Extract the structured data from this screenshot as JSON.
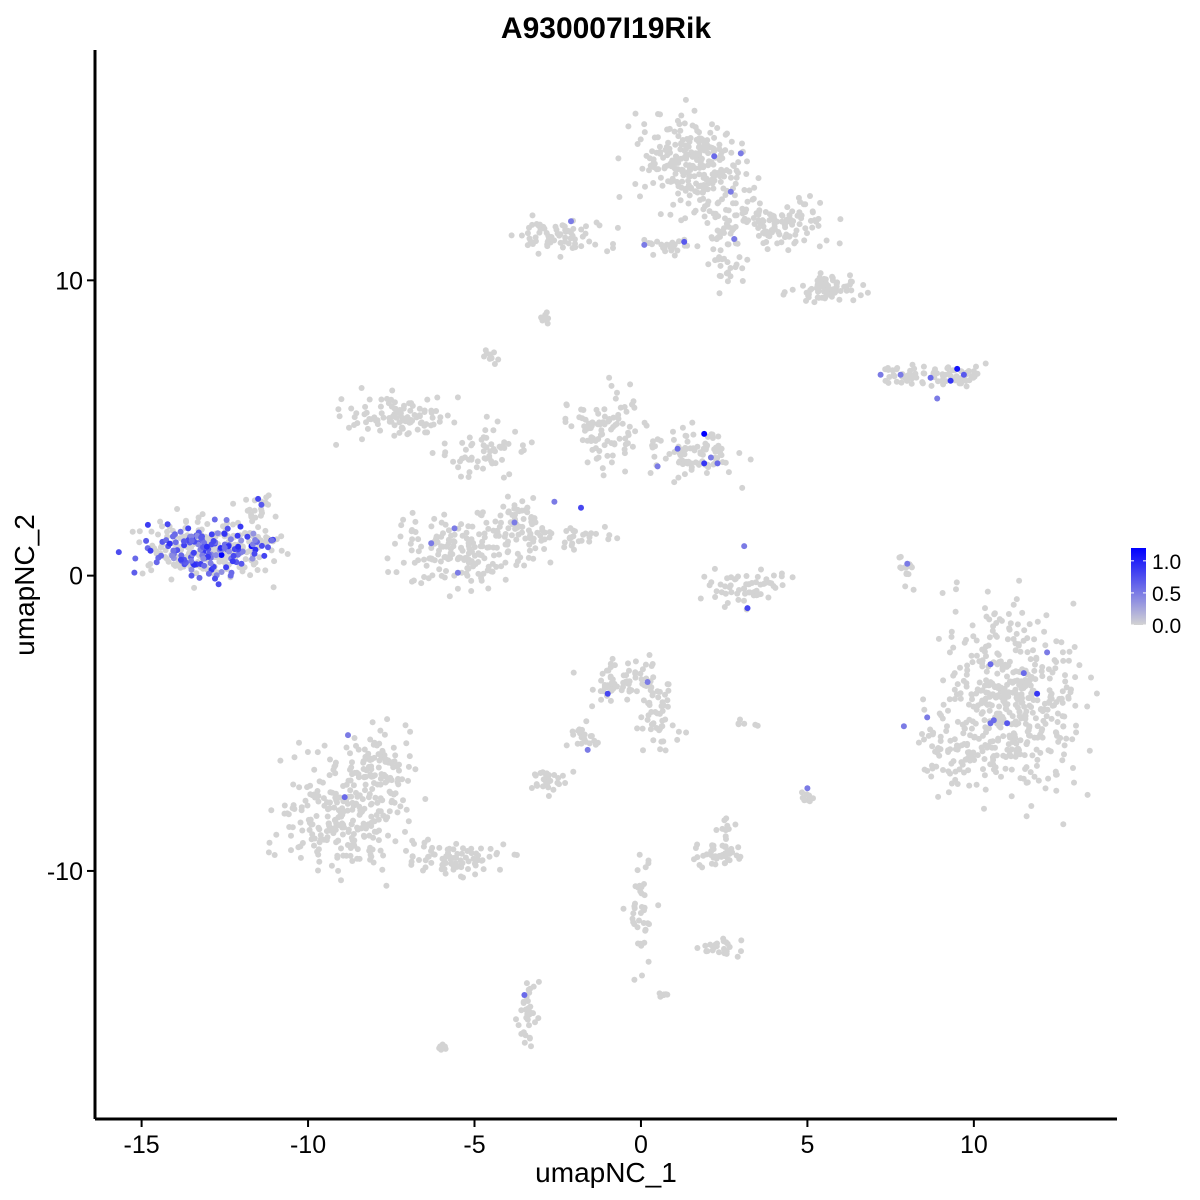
{
  "chart_data": {
    "type": "scatter",
    "title": "A930007I19Rik",
    "xlabel": "umapNC_1",
    "ylabel": "umapNC_2",
    "xlim": [
      -16.4,
      14.3
    ],
    "ylim": [
      -18.4,
      17.8
    ],
    "x_ticks": [
      -15,
      -10,
      -5,
      0,
      5,
      10
    ],
    "x_tick_labels": [
      "-15",
      "-10",
      "-5",
      "0",
      "5",
      "10"
    ],
    "y_ticks": [
      -10,
      0,
      10
    ],
    "y_tick_labels": [
      "-10",
      "0",
      "10"
    ],
    "grid": false,
    "legend_position": "right",
    "colors": {
      "low": "#d3d3d3",
      "high": "#0000ff",
      "point_background": "#d3d3d3"
    },
    "color_scale": {
      "min": 0.0,
      "max": 1.2,
      "breaks": [
        0.0,
        0.5,
        1.0
      ],
      "break_labels": [
        "0.0",
        "0.5",
        "1.0"
      ]
    },
    "clusters": [
      {
        "cx": -13.0,
        "cy": 0.9,
        "rx": 1.9,
        "ry": 0.9,
        "n": 220
      },
      {
        "cx": -11.5,
        "cy": 2.3,
        "rx": 0.35,
        "ry": 0.5,
        "n": 20
      },
      {
        "cx": -11.2,
        "cy": 1.2,
        "rx": 0.5,
        "ry": 0.25,
        "n": 10
      },
      {
        "cx": 1.5,
        "cy": 14.0,
        "rx": 1.5,
        "ry": 1.4,
        "n": 260
      },
      {
        "cx": 3.9,
        "cy": 11.9,
        "rx": 1.9,
        "ry": 0.7,
        "n": 140
      },
      {
        "cx": 5.6,
        "cy": 9.7,
        "rx": 0.9,
        "ry": 0.45,
        "n": 70
      },
      {
        "cx": -2.4,
        "cy": 11.5,
        "rx": 1.3,
        "ry": 0.45,
        "n": 70
      },
      {
        "cx": 0.8,
        "cy": 11.2,
        "rx": 0.8,
        "ry": 0.25,
        "n": 25
      },
      {
        "cx": 2.6,
        "cy": 10.8,
        "rx": 0.5,
        "ry": 0.8,
        "n": 30
      },
      {
        "cx": -2.8,
        "cy": 8.7,
        "rx": 0.25,
        "ry": 0.2,
        "n": 8
      },
      {
        "cx": -4.5,
        "cy": 7.4,
        "rx": 0.25,
        "ry": 0.3,
        "n": 10
      },
      {
        "cx": -7.3,
        "cy": 5.4,
        "rx": 1.4,
        "ry": 0.6,
        "n": 100
      },
      {
        "cx": -4.8,
        "cy": 4.2,
        "rx": 1.2,
        "ry": 0.9,
        "n": 60
      },
      {
        "cx": -5.2,
        "cy": 0.8,
        "rx": 1.9,
        "ry": 1.1,
        "n": 190
      },
      {
        "cx": -3.7,
        "cy": 2.0,
        "rx": 0.6,
        "ry": 0.6,
        "n": 40
      },
      {
        "cx": -1.1,
        "cy": 4.9,
        "rx": 1.0,
        "ry": 1.2,
        "n": 90
      },
      {
        "cx": 1.6,
        "cy": 4.1,
        "rx": 1.3,
        "ry": 0.7,
        "n": 90
      },
      {
        "cx": -2.0,
        "cy": 1.4,
        "rx": 1.2,
        "ry": 0.2,
        "n": 30
      },
      {
        "cx": 3.2,
        "cy": -0.4,
        "rx": 1.2,
        "ry": 0.5,
        "n": 60
      },
      {
        "cx": 8.2,
        "cy": 6.8,
        "rx": 0.9,
        "ry": 0.3,
        "n": 40
      },
      {
        "cx": 9.6,
        "cy": 6.8,
        "rx": 0.6,
        "ry": 0.35,
        "n": 40
      },
      {
        "cx": 8.0,
        "cy": 0.4,
        "rx": 0.2,
        "ry": 0.7,
        "n": 15
      },
      {
        "cx": 11.2,
        "cy": -4.3,
        "rx": 1.9,
        "ry": 2.8,
        "n": 460
      },
      {
        "cx": 9.2,
        "cy": -5.8,
        "rx": 0.7,
        "ry": 1.4,
        "n": 60
      },
      {
        "cx": -0.4,
        "cy": -3.6,
        "rx": 1.1,
        "ry": 0.7,
        "n": 80
      },
      {
        "cx": 0.6,
        "cy": -4.9,
        "rx": 0.6,
        "ry": 0.8,
        "n": 40
      },
      {
        "cx": -1.7,
        "cy": -5.5,
        "rx": 0.5,
        "ry": 0.4,
        "n": 20
      },
      {
        "cx": -2.7,
        "cy": -7.0,
        "rx": 0.6,
        "ry": 0.3,
        "n": 30
      },
      {
        "cx": -8.9,
        "cy": -8.2,
        "rx": 1.7,
        "ry": 1.6,
        "n": 260
      },
      {
        "cx": -7.8,
        "cy": -6.2,
        "rx": 0.9,
        "ry": 0.9,
        "n": 80
      },
      {
        "cx": -5.5,
        "cy": -9.6,
        "rx": 1.4,
        "ry": 0.45,
        "n": 80
      },
      {
        "cx": 2.4,
        "cy": -9.5,
        "rx": 0.6,
        "ry": 0.4,
        "n": 40
      },
      {
        "cx": 2.6,
        "cy": -8.6,
        "rx": 0.25,
        "ry": 0.3,
        "n": 10
      },
      {
        "cx": 5.0,
        "cy": -7.5,
        "rx": 0.2,
        "ry": 0.3,
        "n": 10
      },
      {
        "cx": 0.0,
        "cy": -11.4,
        "rx": 0.4,
        "ry": 1.6,
        "n": 40
      },
      {
        "cx": 2.3,
        "cy": -12.6,
        "rx": 0.6,
        "ry": 0.3,
        "n": 25
      },
      {
        "cx": -3.4,
        "cy": -14.8,
        "rx": 0.3,
        "ry": 0.9,
        "n": 35
      },
      {
        "cx": -6.0,
        "cy": -16.0,
        "rx": 0.2,
        "ry": 0.15,
        "n": 6
      },
      {
        "cx": 0.6,
        "cy": -14.2,
        "rx": 0.2,
        "ry": 0.15,
        "n": 6
      },
      {
        "cx": 3.1,
        "cy": -5.0,
        "rx": 0.4,
        "ry": 0.1,
        "n": 6
      },
      {
        "cx": -2.1,
        "cy": 1.0,
        "rx": 0.25,
        "ry": 0.3,
        "n": 6
      }
    ],
    "expressing_cells": [
      {
        "x": -13.0,
        "y": 0.9,
        "v": 0.7
      },
      {
        "x": -13.3,
        "y": 1.1,
        "v": 0.9
      },
      {
        "x": -12.6,
        "y": 0.7,
        "v": 1.2
      },
      {
        "x": -12.2,
        "y": 0.9,
        "v": 0.8
      },
      {
        "x": -13.8,
        "y": 0.5,
        "v": 0.6
      },
      {
        "x": -14.2,
        "y": 1.0,
        "v": 0.7
      },
      {
        "x": -12.9,
        "y": 0.2,
        "v": 0.9
      },
      {
        "x": -12.5,
        "y": 1.4,
        "v": 0.6
      },
      {
        "x": -13.6,
        "y": 1.6,
        "v": 0.8
      },
      {
        "x": -12.0,
        "y": 0.4,
        "v": 0.7
      },
      {
        "x": -11.7,
        "y": 1.0,
        "v": 1.1
      },
      {
        "x": -11.1,
        "y": 1.2,
        "v": 1.0
      },
      {
        "x": -13.1,
        "y": 0.6,
        "v": 0.9
      },
      {
        "x": -14.5,
        "y": 0.6,
        "v": 0.6
      },
      {
        "x": -12.8,
        "y": 1.9,
        "v": 0.6
      },
      {
        "x": -13.5,
        "y": 0.0,
        "v": 0.7
      },
      {
        "x": -12.3,
        "y": 0.1,
        "v": 0.6
      },
      {
        "x": -11.5,
        "y": 2.6,
        "v": 0.8
      },
      {
        "x": -11.4,
        "y": 2.4,
        "v": 0.7
      },
      {
        "x": -14.0,
        "y": 1.4,
        "v": 0.6
      },
      {
        "x": 2.2,
        "y": 14.2,
        "v": 0.6
      },
      {
        "x": 3.0,
        "y": 14.3,
        "v": 0.5
      },
      {
        "x": 2.7,
        "y": 13.0,
        "v": 0.5
      },
      {
        "x": 2.8,
        "y": 11.4,
        "v": 0.5
      },
      {
        "x": 1.3,
        "y": 11.3,
        "v": 0.7
      },
      {
        "x": -2.1,
        "y": 12.0,
        "v": 0.5
      },
      {
        "x": 0.1,
        "y": 11.2,
        "v": 0.5
      },
      {
        "x": 7.2,
        "y": 6.8,
        "v": 0.5
      },
      {
        "x": 7.8,
        "y": 6.8,
        "v": 0.5
      },
      {
        "x": 8.7,
        "y": 6.7,
        "v": 0.6
      },
      {
        "x": 9.5,
        "y": 7.0,
        "v": 1.1
      },
      {
        "x": 9.3,
        "y": 6.6,
        "v": 0.9
      },
      {
        "x": 9.7,
        "y": 6.8,
        "v": 0.7
      },
      {
        "x": 8.9,
        "y": 6.0,
        "v": 0.5
      },
      {
        "x": 1.9,
        "y": 4.8,
        "v": 1.2
      },
      {
        "x": 1.1,
        "y": 4.3,
        "v": 0.6
      },
      {
        "x": 1.9,
        "y": 3.8,
        "v": 0.9
      },
      {
        "x": 2.3,
        "y": 3.8,
        "v": 0.6
      },
      {
        "x": 2.1,
        "y": 4.0,
        "v": 0.5
      },
      {
        "x": 0.5,
        "y": 3.7,
        "v": 0.5
      },
      {
        "x": -1.8,
        "y": 2.3,
        "v": 0.8
      },
      {
        "x": -2.6,
        "y": 2.5,
        "v": 0.5
      },
      {
        "x": -3.8,
        "y": 1.8,
        "v": 0.5
      },
      {
        "x": -5.6,
        "y": 1.6,
        "v": 0.5
      },
      {
        "x": -6.3,
        "y": 1.1,
        "v": 0.5
      },
      {
        "x": -5.5,
        "y": 0.1,
        "v": 0.5
      },
      {
        "x": 3.2,
        "y": -1.1,
        "v": 0.8
      },
      {
        "x": 3.1,
        "y": 1.0,
        "v": 0.5
      },
      {
        "x": 8.0,
        "y": 0.4,
        "v": 0.5
      },
      {
        "x": 10.5,
        "y": -3.0,
        "v": 0.6
      },
      {
        "x": 11.5,
        "y": -3.3,
        "v": 0.6
      },
      {
        "x": 12.2,
        "y": -2.6,
        "v": 0.5
      },
      {
        "x": 11.9,
        "y": -4.0,
        "v": 0.9
      },
      {
        "x": 10.5,
        "y": -5.0,
        "v": 0.6
      },
      {
        "x": 10.6,
        "y": -4.9,
        "v": 0.6
      },
      {
        "x": 11.0,
        "y": -5.0,
        "v": 0.7
      },
      {
        "x": 8.6,
        "y": -4.8,
        "v": 0.5
      },
      {
        "x": 7.9,
        "y": -5.1,
        "v": 0.5
      },
      {
        "x": -1.0,
        "y": -4.0,
        "v": 0.8
      },
      {
        "x": 0.2,
        "y": -3.6,
        "v": 0.5
      },
      {
        "x": -1.6,
        "y": -5.9,
        "v": 0.5
      },
      {
        "x": -8.8,
        "y": -5.4,
        "v": 0.5
      },
      {
        "x": -8.9,
        "y": -7.5,
        "v": 0.6
      },
      {
        "x": 5.0,
        "y": -7.2,
        "v": 0.5
      },
      {
        "x": -3.5,
        "y": -14.2,
        "v": 0.6
      }
    ]
  }
}
